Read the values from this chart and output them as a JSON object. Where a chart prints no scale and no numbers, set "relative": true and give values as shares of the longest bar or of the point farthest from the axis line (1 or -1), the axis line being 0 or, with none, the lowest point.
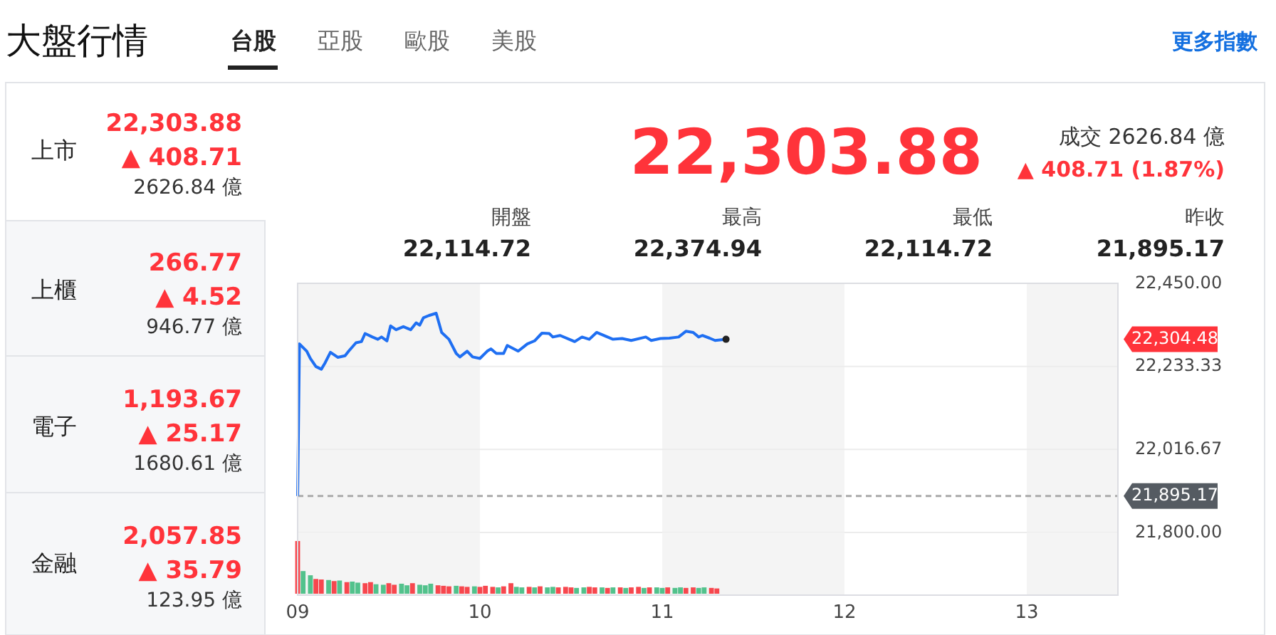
{
  "chart_data": [
    {
      "type": "other",
      "title": "大盤行情",
      "annotations": [
        "台股",
        "亞股",
        "歐股",
        "美股",
        "更多指數",
        "上市",
        "22,303.88",
        "▲ 408.71",
        "2626.84 億",
        "上櫃",
        "266.77",
        "▲ 4.52",
        "946.77 億",
        "電子",
        "1,193.67",
        "▲ 25.17",
        "1680.61 億",
        "金融",
        "2,057.85",
        "▲ 35.79",
        "123.95 億",
        "22,303.88",
        "成交 2626.84 億",
        "▲ 408.71 (1.87%)",
        "開盤",
        "22,114.72",
        "最高",
        "22,374.94",
        "最低",
        "22,114.72",
        "昨收",
        "21,895.17"
      ]
    },
    {
      "type": "line",
      "xlim": [
        9,
        13.5
      ],
      "ylim": [
        21800,
        22450
      ],
      "yticks": [
        {
          "value": 22450,
          "label": "22,450.00"
        },
        {
          "value": 22233.33,
          "label": "22,233.33"
        },
        {
          "value": 22016.67,
          "label": "22,016.67"
        },
        {
          "value": 21800,
          "label": "21,800.00"
        }
      ],
      "tick_labels": "y",
      "grid": "y",
      "series": [
        {
          "color": "#1f6ff2",
          "x": [
            9.0,
            9.01,
            9.05,
            9.07,
            9.1,
            9.13,
            9.15,
            9.18,
            9.22,
            9.26,
            9.28,
            9.32,
            9.35,
            9.37,
            9.41,
            9.44,
            9.46,
            9.49,
            9.51,
            9.54,
            9.58,
            9.62,
            9.65,
            9.67,
            9.69,
            9.72,
            9.76,
            9.79,
            9.83,
            9.87,
            9.89,
            9.93,
            9.96,
            10.0,
            10.04,
            10.06,
            10.09,
            10.13,
            10.15,
            10.21,
            10.26,
            10.3,
            10.34,
            10.38,
            10.4,
            10.44,
            10.49,
            10.52,
            10.56,
            10.6,
            10.64,
            10.67,
            10.73,
            10.78,
            10.83,
            10.91,
            10.94,
            10.99,
            11.04,
            11.09,
            11.13,
            11.17,
            11.2,
            11.22,
            11.26,
            11.29,
            11.35
          ],
          "values": [
            21895,
            22292,
            22273,
            22254,
            22233,
            22226,
            22242,
            22270,
            22257,
            22261,
            22273,
            22295,
            22298,
            22319,
            22310,
            22304,
            22310,
            22300,
            22339,
            22329,
            22337,
            22329,
            22347,
            22341,
            22360,
            22366,
            22372,
            22322,
            22304,
            22267,
            22258,
            22273,
            22258,
            22254,
            22273,
            22279,
            22267,
            22267,
            22288,
            22273,
            22292,
            22300,
            22320,
            22319,
            22310,
            22314,
            22304,
            22298,
            22310,
            22304,
            22322,
            22316,
            22304,
            22306,
            22301,
            22310,
            22301,
            22306,
            22307,
            22310,
            22325,
            22322,
            22310,
            22314,
            22307,
            22301,
            22304
          ]
        }
      ],
      "ref_lines": [
        {
          "axis": "y",
          "value": 21895.17,
          "label": "21,895.17",
          "color": "#aaaaaa",
          "line_style": "dashed"
        }
      ],
      "annotations": [
        "22,304.48"
      ],
      "bands": [
        {
          "axis": "x",
          "from": 9,
          "to": 10,
          "color": "#f4f4f4"
        },
        {
          "axis": "x",
          "from": 11,
          "to": 12,
          "color": "#f4f4f4"
        },
        {
          "axis": "x",
          "from": 13,
          "to": 13.5,
          "color": "#f4f4f4"
        }
      ]
    },
    {
      "type": "bar",
      "relative": true,
      "xlim": [
        9,
        13.5
      ],
      "xticks": [
        {
          "value": 9,
          "label": "09"
        },
        {
          "value": 10,
          "label": "10"
        },
        {
          "value": 11,
          "label": "11"
        },
        {
          "value": 12,
          "label": "12"
        },
        {
          "value": 13,
          "label": "13"
        }
      ],
      "tick_labels": "x",
      "x": [
        9.0,
        9.03,
        9.07,
        9.1,
        9.13,
        9.17,
        9.2,
        9.23,
        9.27,
        9.3,
        9.33,
        9.37,
        9.4,
        9.43,
        9.47,
        9.5,
        9.53,
        9.57,
        9.6,
        9.63,
        9.67,
        9.7,
        9.73,
        9.77,
        9.8,
        9.83,
        9.87,
        9.9,
        9.93,
        9.97,
        10.0,
        10.03,
        10.07,
        10.1,
        10.13,
        10.17,
        10.2,
        10.23,
        10.27,
        10.3,
        10.33,
        10.37,
        10.4,
        10.43,
        10.47,
        10.5,
        10.53,
        10.57,
        10.6,
        10.63,
        10.67,
        10.7,
        10.73,
        10.77,
        10.8,
        10.83,
        10.87,
        10.9,
        10.93,
        10.97,
        11.0,
        11.03,
        11.07,
        11.1,
        11.13,
        11.17,
        11.2,
        11.23,
        11.27,
        11.3
      ],
      "values": [
        1.0,
        0.43,
        0.35,
        0.28,
        0.27,
        0.26,
        0.24,
        0.25,
        0.22,
        0.23,
        0.21,
        0.2,
        0.22,
        0.18,
        0.17,
        0.2,
        0.17,
        0.19,
        0.16,
        0.2,
        0.17,
        0.16,
        0.19,
        0.16,
        0.15,
        0.14,
        0.15,
        0.14,
        0.13,
        0.14,
        0.13,
        0.15,
        0.13,
        0.12,
        0.14,
        0.2,
        0.13,
        0.12,
        0.13,
        0.12,
        0.14,
        0.12,
        0.13,
        0.12,
        0.13,
        0.12,
        0.11,
        0.12,
        0.13,
        0.12,
        0.12,
        0.11,
        0.12,
        0.12,
        0.11,
        0.12,
        0.13,
        0.11,
        0.12,
        0.12,
        0.11,
        0.12,
        0.11,
        0.12,
        0.11,
        0.12,
        0.11,
        0.12,
        0.11,
        0.1
      ],
      "colors": [
        "#f7474e",
        "#52c28c",
        "#52c28c",
        "#f7474e",
        "#f7474e",
        "#52c28c",
        "#f7474e",
        "#52c28c",
        "#f7474e",
        "#52c28c",
        "#52c28c",
        "#f7474e",
        "#f7474e",
        "#52c28c",
        "#52c28c",
        "#f7474e",
        "#f7474e",
        "#52c28c",
        "#52c28c",
        "#f7474e",
        "#52c28c",
        "#52c28c",
        "#52c28c",
        "#f7474e",
        "#f7474e",
        "#f7474e",
        "#52c28c",
        "#f7474e",
        "#f7474e",
        "#52c28c",
        "#f7474e",
        "#f7474e",
        "#f7474e",
        "#52c28c",
        "#f7474e",
        "#f7474e",
        "#52c28c",
        "#52c28c",
        "#f7474e",
        "#52c28c",
        "#f7474e",
        "#52c28c",
        "#52c28c",
        "#f7474e",
        "#f7474e",
        "#f7474e",
        "#52c28c",
        "#52c28c",
        "#f7474e",
        "#f7474e",
        "#52c28c",
        "#f7474e",
        "#52c28c",
        "#f7474e",
        "#52c28c",
        "#f7474e",
        "#f7474e",
        "#52c28c",
        "#f7474e",
        "#52c28c",
        "#52c28c",
        "#f7474e",
        "#52c28c",
        "#52c28c",
        "#f7474e",
        "#f7474e",
        "#52c28c",
        "#52c28c",
        "#f7474e",
        "#f7474e"
      ],
      "bands": [
        {
          "axis": "x",
          "from": 9,
          "to": 10,
          "color": "#f4f4f4"
        },
        {
          "axis": "x",
          "from": 11,
          "to": 12,
          "color": "#f4f4f4"
        },
        {
          "axis": "x",
          "from": 13,
          "to": 13.5,
          "color": "#f4f4f4"
        }
      ]
    }
  ]
}
